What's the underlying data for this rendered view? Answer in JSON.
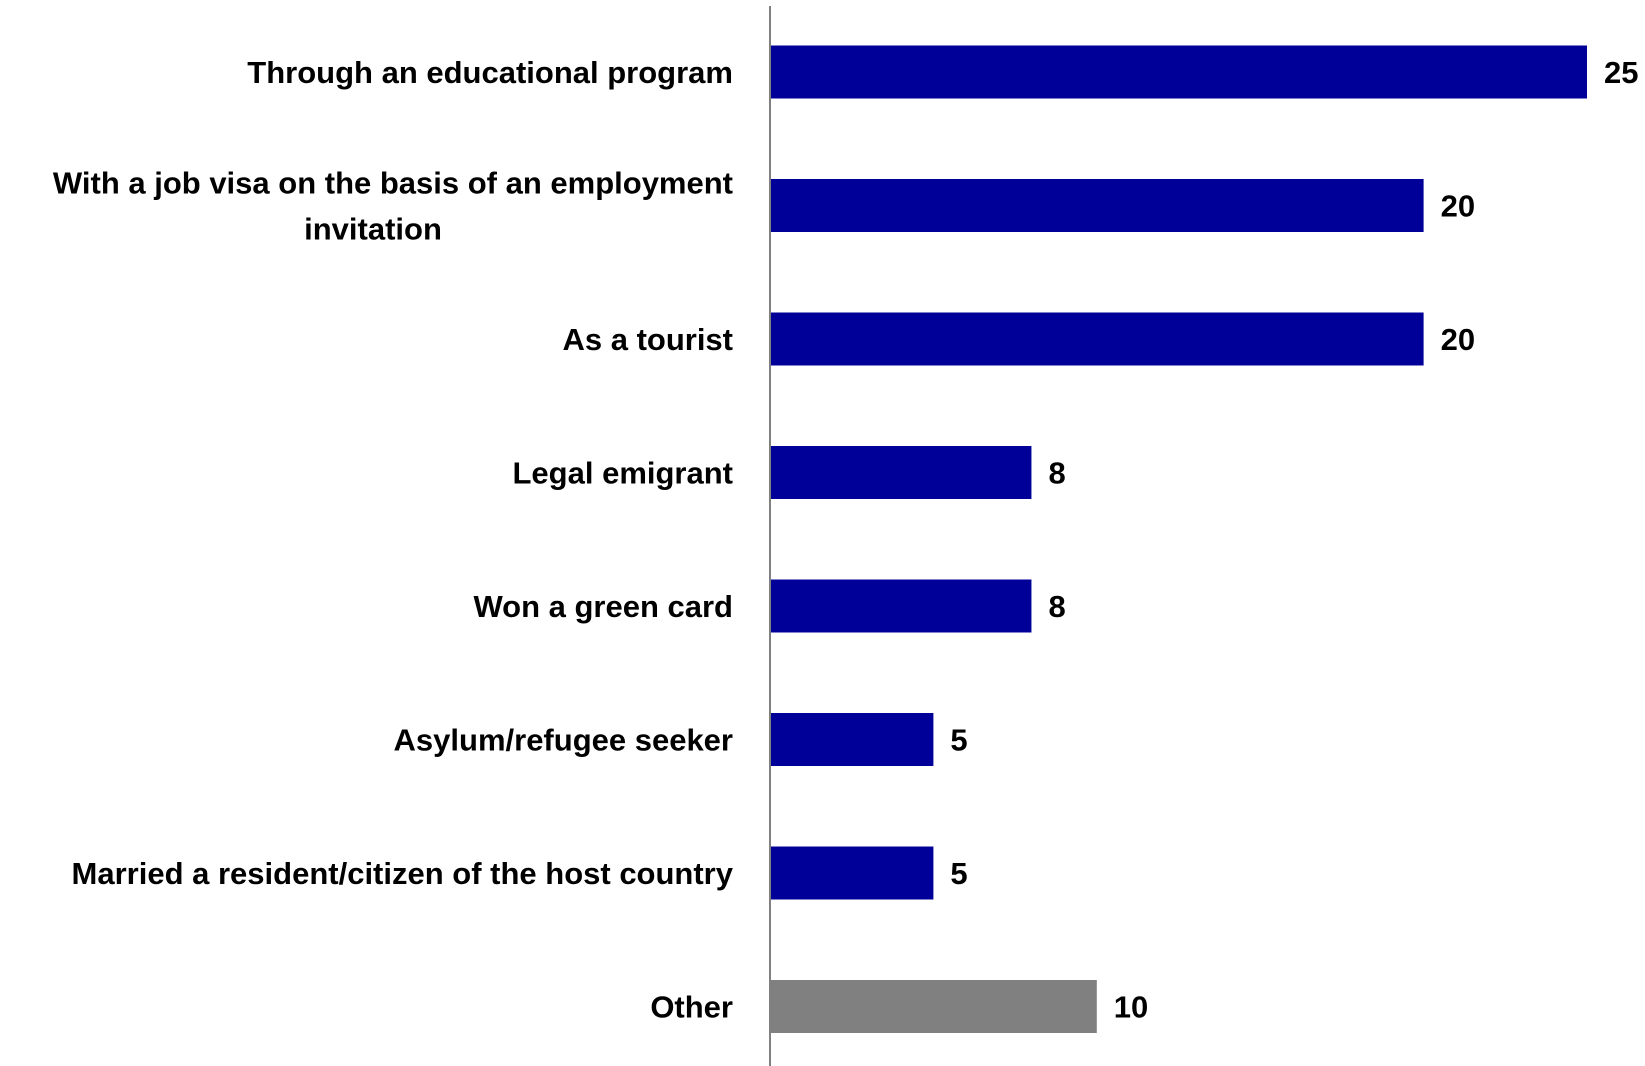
{
  "chart_data": {
    "type": "bar",
    "orientation": "horizontal",
    "title": "",
    "xlabel": "",
    "ylabel": "",
    "categories": [
      "Through an educational program",
      "With a job visa on the basis of an employment invitation",
      "As a tourist",
      "Legal emigrant",
      "Won a green card",
      "Asylum/refugee seeker",
      "Married a resident/citizen of the host country",
      "Other"
    ],
    "category_lines": [
      [
        "Through an educational program"
      ],
      [
        "With a job visa on the basis of an employment",
        "invitation"
      ],
      [
        "As a tourist"
      ],
      [
        "Legal emigrant"
      ],
      [
        "Won a green card"
      ],
      [
        "Asylum/refugee seeker"
      ],
      [
        "Married a resident/citizen of the host country"
      ],
      [
        "Other"
      ]
    ],
    "values": [
      25,
      20,
      20,
      8,
      8,
      5,
      5,
      10
    ],
    "value_labels": [
      "25",
      "20",
      "20",
      "8",
      "8",
      "5",
      "5",
      "10"
    ],
    "bar_colors": [
      "#000099",
      "#000099",
      "#000099",
      "#000099",
      "#000099",
      "#000099",
      "#000099",
      "#808080"
    ],
    "xlim": [
      0,
      25
    ],
    "grid": false,
    "legend": "none",
    "axis_color": "#808080"
  }
}
